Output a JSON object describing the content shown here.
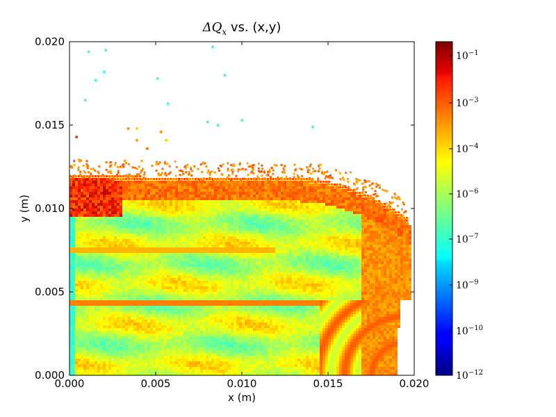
{
  "chart_data": {
    "type": "heatmap",
    "title_math": "ΔQ",
    "title_sub": "x",
    "title_rest": " vs. (x,y)",
    "xlabel": "x (m)",
    "ylabel": "y (m)",
    "xlim": [
      0.0,
      0.02
    ],
    "ylim": [
      0.0,
      0.02
    ],
    "xticks": [
      "0.000",
      "0.005",
      "0.010",
      "0.015",
      "0.020"
    ],
    "yticks": [
      "0.000",
      "0.005",
      "0.010",
      "0.015",
      "0.020"
    ],
    "colorbar": {
      "scale": "log",
      "colormap": "jet",
      "min": 1e-12,
      "max": 0.3,
      "tick_labels": [
        {
          "base": "10",
          "exp": "−12"
        },
        {
          "base": "10",
          "exp": "−10"
        },
        {
          "base": "10",
          "exp": "−9"
        },
        {
          "base": "10",
          "exp": "−7"
        },
        {
          "base": "10",
          "exp": "−6"
        },
        {
          "base": "10",
          "exp": "−4"
        },
        {
          "base": "10",
          "exp": "−3"
        },
        {
          "base": "10",
          "exp": "−1"
        }
      ]
    },
    "stray_points": [
      {
        "x": 0.0011,
        "y": 0.0194,
        "c": "#3fffb8"
      },
      {
        "x": 0.0021,
        "y": 0.0195,
        "c": "#3fffb8"
      },
      {
        "x": 0.002,
        "y": 0.0182,
        "c": "#3fffb8"
      },
      {
        "x": 0.0015,
        "y": 0.0177,
        "c": "#3fffb8"
      },
      {
        "x": 0.0009,
        "y": 0.0165,
        "c": "#3fffb8"
      },
      {
        "x": 0.0083,
        "y": 0.0197,
        "c": "#3fffb8"
      },
      {
        "x": 0.0051,
        "y": 0.0178,
        "c": "#3fffb8"
      },
      {
        "x": 0.009,
        "y": 0.018,
        "c": "#3fffb8"
      },
      {
        "x": 0.0057,
        "y": 0.0163,
        "c": "#3fffb8"
      },
      {
        "x": 0.008,
        "y": 0.0152,
        "c": "#3fffb8"
      },
      {
        "x": 0.0086,
        "y": 0.015,
        "c": "#3fffb8"
      },
      {
        "x": 0.01,
        "y": 0.0153,
        "c": "#3fffb8"
      },
      {
        "x": 0.0141,
        "y": 0.0149,
        "c": "#3fffb8"
      },
      {
        "x": 0.0034,
        "y": 0.0148,
        "c": "#ff8a00"
      },
      {
        "x": 0.0039,
        "y": 0.0148,
        "c": "#ffcf00"
      },
      {
        "x": 0.0053,
        "y": 0.0146,
        "c": "#ff8a00"
      },
      {
        "x": 0.0004,
        "y": 0.0143,
        "c": "#e83000"
      },
      {
        "x": 0.0039,
        "y": 0.0141,
        "c": "#ff9a00"
      },
      {
        "x": 0.0045,
        "y": 0.0136,
        "c": "#ff7000"
      },
      {
        "x": 0.0056,
        "y": 0.0141,
        "c": "#ffd000"
      }
    ]
  }
}
